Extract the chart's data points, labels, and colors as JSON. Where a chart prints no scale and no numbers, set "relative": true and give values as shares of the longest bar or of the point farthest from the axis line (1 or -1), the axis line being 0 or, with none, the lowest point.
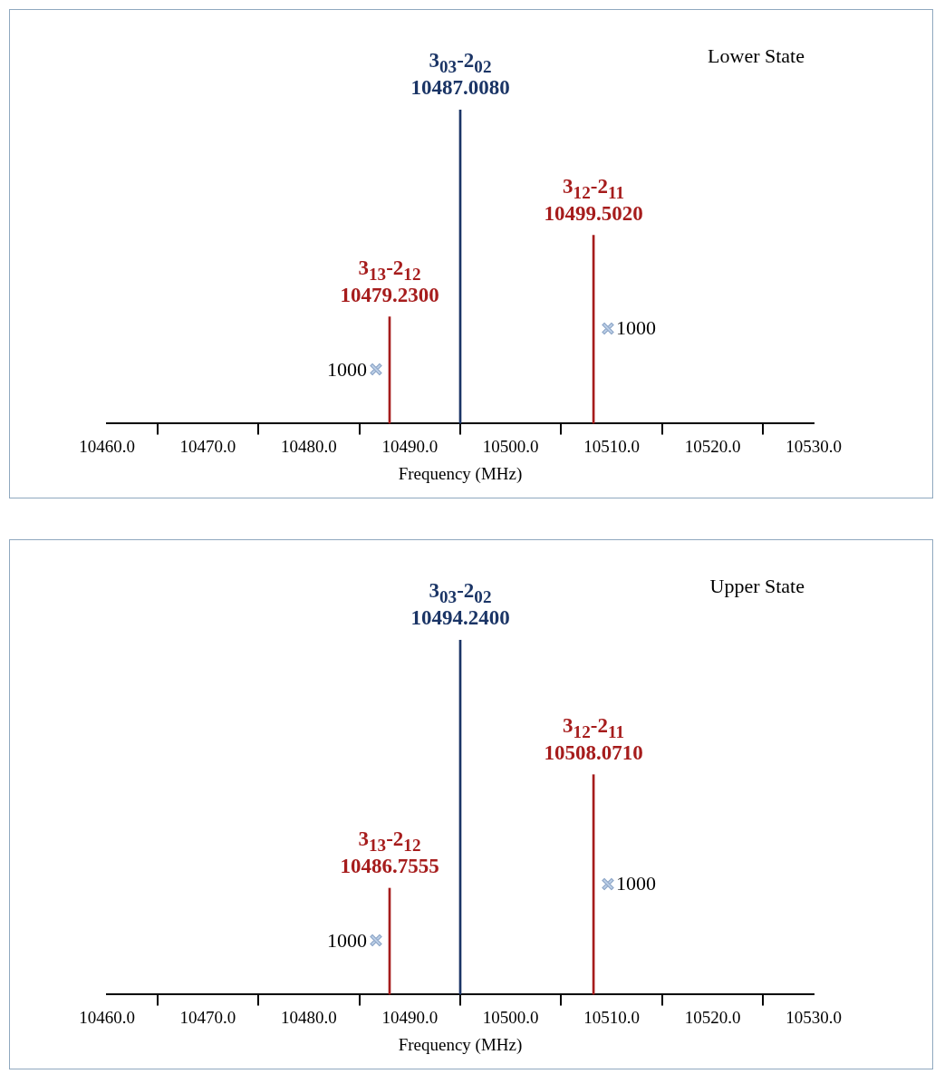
{
  "chart_data": [
    {
      "type": "bar",
      "relative": true,
      "xlabel": "Frequency (MHz)",
      "x": [
        10488.0,
        10495.0,
        10508.2
      ],
      "values": [
        0.34,
        1,
        0.6
      ],
      "colors": [
        "#a61c1c",
        "#1b3566",
        "#a61c1c"
      ],
      "xlim": [
        10460,
        10530
      ],
      "xticks": [
        {
          "value": 10460,
          "label": "10460.0"
        },
        {
          "value": 10470,
          "label": "10470.0"
        },
        {
          "value": 10480,
          "label": "10480.0"
        },
        {
          "value": 10490,
          "label": "10490.0"
        },
        {
          "value": 10500,
          "label": "10500.0"
        },
        {
          "value": 10510,
          "label": "10510.0"
        },
        {
          "value": 10520,
          "label": "10520.0"
        },
        {
          "value": 10530,
          "label": "10530.0"
        }
      ],
      "legend": false,
      "grid": false,
      "annotations": [
        "Lower State",
        {
          "text": "3$_{13}$-2$_{12}$",
          "x": 10488.0,
          "y": 0.34
        },
        {
          "text": "10479.2300",
          "x": 10488.0,
          "y": 0.34
        },
        {
          "text": "3$_{03}$-2$_{02}$",
          "x": 10495.0,
          "y": 1
        },
        {
          "text": "10487.0080",
          "x": 10495.0,
          "y": 1
        },
        {
          "text": "3$_{12}$-2$_{11}$",
          "x": 10508.2,
          "y": 0.6
        },
        {
          "text": "10499.5020",
          "x": 10508.2,
          "y": 0.6
        },
        "1000",
        "1000"
      ]
    },
    {
      "type": "bar",
      "relative": true,
      "xlabel": "Frequency (MHz)",
      "x": [
        10488.0,
        10495.0,
        10508.2
      ],
      "values": [
        0.3,
        1,
        0.62
      ],
      "colors": [
        "#a61c1c",
        "#1b3566",
        "#a61c1c"
      ],
      "xlim": [
        10460,
        10530
      ],
      "xticks": [
        {
          "value": 10460,
          "label": "10460.0"
        },
        {
          "value": 10470,
          "label": "10470.0"
        },
        {
          "value": 10480,
          "label": "10480.0"
        },
        {
          "value": 10490,
          "label": "10490.0"
        },
        {
          "value": 10500,
          "label": "10500.0"
        },
        {
          "value": 10510,
          "label": "10510.0"
        },
        {
          "value": 10520,
          "label": "10520.0"
        },
        {
          "value": 10530,
          "label": "10530.0"
        }
      ],
      "legend": false,
      "grid": false,
      "annotations": [
        "Upper State",
        {
          "text": "3$_{13}$-2$_{12}$",
          "x": 10488.0,
          "y": 0.3
        },
        {
          "text": "10486.7555",
          "x": 10488.0,
          "y": 0.3
        },
        {
          "text": "3$_{03}$-2$_{02}$",
          "x": 10495.0,
          "y": 1
        },
        {
          "text": "10494.2400",
          "x": 10495.0,
          "y": 1
        },
        {
          "text": "3$_{12}$-2$_{11}$",
          "x": 10508.2,
          "y": 0.62
        },
        {
          "text": "10508.0710",
          "x": 10508.2,
          "y": 0.62
        },
        "1000",
        "1000"
      ]
    }
  ]
}
